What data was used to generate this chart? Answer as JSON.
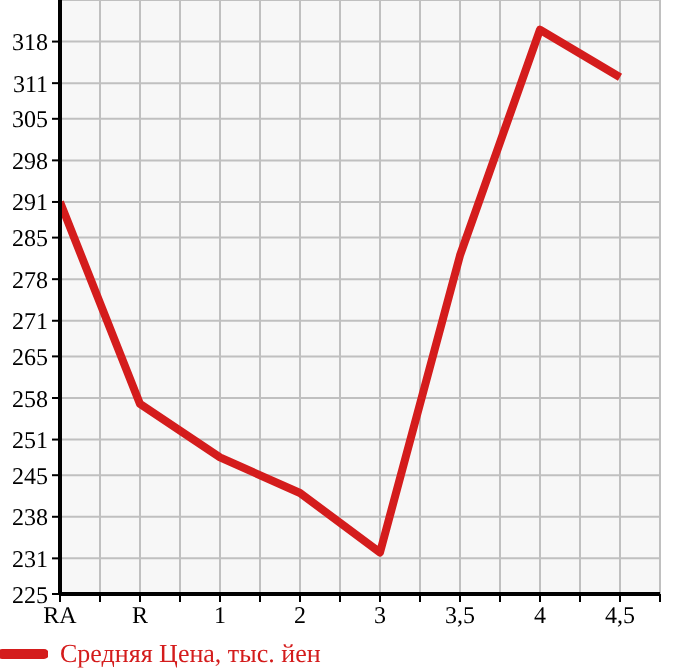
{
  "chart_data": {
    "type": "line",
    "categories": [
      "RA",
      "R",
      "1",
      "2",
      "3",
      "3,5",
      "4",
      "4,5"
    ],
    "series": [
      {
        "name": "Средняя Цена, тыс. йен",
        "color": "#d41c1c",
        "values": [
          291,
          257,
          248,
          242,
          232,
          282,
          320,
          312
        ]
      }
    ],
    "ylim": [
      225,
      325
    ],
    "yticks": [
      225,
      231,
      238,
      245,
      251,
      258,
      265,
      271,
      278,
      285,
      291,
      298,
      305,
      311,
      318
    ],
    "grid": true,
    "legend": "bottom",
    "marker": "none",
    "line_style": "solid"
  }
}
